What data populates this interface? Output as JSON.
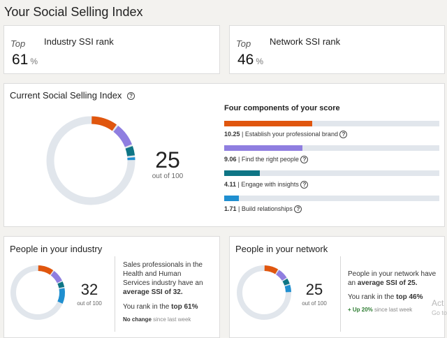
{
  "header": {
    "title": "Your Social Selling Index"
  },
  "industry_rank": {
    "top_label": "Top",
    "label": "Industry SSI rank",
    "value": "61",
    "unit": "%"
  },
  "network_rank": {
    "top_label": "Top",
    "label": "Network SSI rank",
    "value": "46",
    "unit": "%"
  },
  "current": {
    "title": "Current Social Selling Index",
    "score": "25",
    "out_of": "out of 100",
    "components_title": "Four components of your score",
    "components": [
      {
        "value": "10.25",
        "label": "Establish your professional brand",
        "score": 10.25,
        "max": 25,
        "color": "#e0560e"
      },
      {
        "value": "9.06",
        "label": "Find the right people",
        "score": 9.06,
        "max": 25,
        "color": "#8f7ee0"
      },
      {
        "value": "4.11",
        "label": "Engage with insights",
        "score": 4.11,
        "max": 25,
        "color": "#0e7585"
      },
      {
        "value": "1.71",
        "label": "Build relationships",
        "score": 1.71,
        "max": 25,
        "color": "#1f8fd0"
      }
    ]
  },
  "industry_people": {
    "title": "People in your industry",
    "score": "32",
    "out_of": "out of 100",
    "desc_pre": "Sales professionals in the Health and Human Services industry have an",
    "desc_bold": "average SSI of 32.",
    "rank_pre": "You rank in the",
    "rank_bold": "top 61%",
    "change_bold": "No change",
    "change_rest": "since last week",
    "segments": [
      10,
      8,
      4,
      10
    ]
  },
  "network_people": {
    "title": "People in your network",
    "score": "25",
    "out_of": "out of 100",
    "desc_pre": "People in your network have an",
    "desc_bold": "average SSI of 25.",
    "rank_pre": "You rank in the",
    "rank_bold": "top 46%",
    "change_bold": "+ Up 20%",
    "change_rest": "since last week",
    "segments": [
      9,
      7,
      4,
      5
    ]
  },
  "watermark": {
    "line1": "Act",
    "line2": "Go to"
  }
}
